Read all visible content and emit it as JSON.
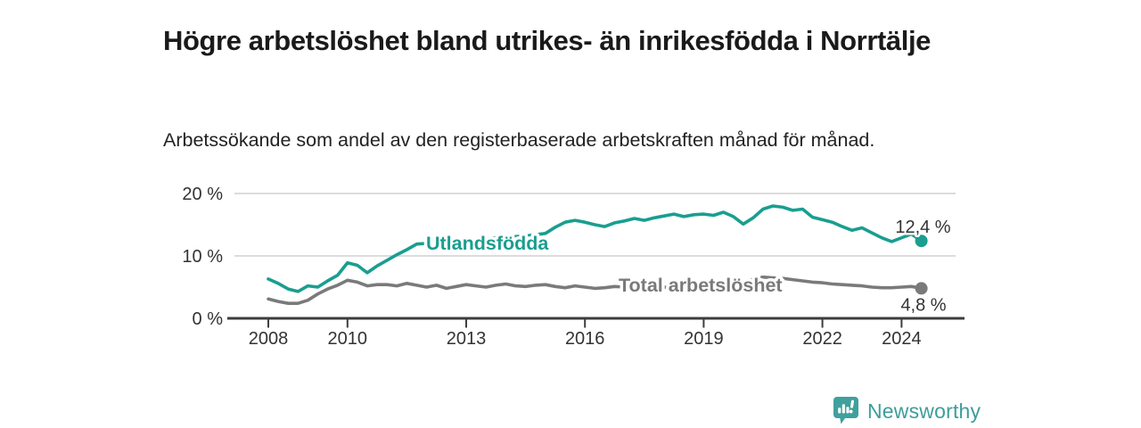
{
  "header": {
    "title": "Högre arbetslöshet bland utrikes- än inrikesfödda i Norrtälje",
    "subtitle": "Arbetssökande som andel av den registerbaserade arbetskraften månad för månad."
  },
  "chart_data": {
    "type": "line",
    "title": "Högre arbetslöshet bland utrikes- än inrikesfödda i Norrtälje",
    "subtitle": "Arbetssökande som andel av den registerbaserade arbetskraften månad för månad.",
    "unit": "%",
    "grid": "horizontal",
    "xlim": [
      2007.1,
      2025.6
    ],
    "ylim": [
      0,
      21.5
    ],
    "x": [
      2008.0,
      2008.25,
      2008.5,
      2008.75,
      2009.0,
      2009.25,
      2009.5,
      2009.75,
      2010.0,
      2010.25,
      2010.5,
      2010.75,
      2011.0,
      2011.25,
      2011.5,
      2011.75,
      2012.0,
      2012.25,
      2012.5,
      2012.75,
      2013.0,
      2013.25,
      2013.5,
      2013.75,
      2014.0,
      2014.25,
      2014.5,
      2014.75,
      2015.0,
      2015.25,
      2015.5,
      2015.75,
      2016.0,
      2016.25,
      2016.5,
      2016.75,
      2017.0,
      2017.25,
      2017.5,
      2017.75,
      2018.0,
      2018.25,
      2018.5,
      2018.75,
      2019.0,
      2019.25,
      2019.5,
      2019.75,
      2020.0,
      2020.25,
      2020.5,
      2020.75,
      2021.0,
      2021.25,
      2021.5,
      2021.75,
      2022.0,
      2022.25,
      2022.5,
      2022.75,
      2023.0,
      2023.25,
      2023.5,
      2023.75,
      2024.0,
      2024.25,
      2024.5
    ],
    "series": [
      {
        "name": "Utlandsfödda",
        "color": "#1A9E90",
        "end_label": "12,4 %",
        "end_value": 12.4,
        "values": [
          6.3,
          5.6,
          4.7,
          4.3,
          5.2,
          5.0,
          6.0,
          6.9,
          8.9,
          8.5,
          7.3,
          8.4,
          9.3,
          10.2,
          11.0,
          11.9,
          12.0,
          12.1,
          12.3,
          12.4,
          12.5,
          12.6,
          12.8,
          12.9,
          13.0,
          13.1,
          13.2,
          13.4,
          13.6,
          14.6,
          15.4,
          15.7,
          15.4,
          15.0,
          14.7,
          15.3,
          15.6,
          16.0,
          15.7,
          16.1,
          16.4,
          16.7,
          16.3,
          16.6,
          16.7,
          16.5,
          17.0,
          16.3,
          15.1,
          16.1,
          17.5,
          18.0,
          17.8,
          17.3,
          17.5,
          16.2,
          15.8,
          15.4,
          14.7,
          14.1,
          14.5,
          13.7,
          12.9,
          12.3,
          12.9,
          13.5,
          12.4
        ]
      },
      {
        "name": "Total arbetslöshet",
        "color": "#7A7A7A",
        "end_label": "4,8 %",
        "end_value": 4.8,
        "values": [
          3.1,
          2.7,
          2.4,
          2.4,
          2.9,
          3.9,
          4.7,
          5.3,
          6.1,
          5.8,
          5.2,
          5.4,
          5.4,
          5.2,
          5.6,
          5.3,
          5.0,
          5.3,
          4.8,
          5.1,
          5.4,
          5.2,
          5.0,
          5.3,
          5.5,
          5.2,
          5.1,
          5.3,
          5.4,
          5.1,
          4.9,
          5.2,
          5.0,
          4.8,
          4.9,
          5.1,
          5.0,
          4.9,
          5.2,
          5.1,
          5.0,
          4.9,
          5.1,
          5.0,
          5.2,
          5.3,
          5.5,
          5.4,
          5.6,
          6.3,
          6.6,
          6.5,
          6.4,
          6.2,
          6.0,
          5.8,
          5.7,
          5.5,
          5.4,
          5.3,
          5.2,
          5.0,
          4.9,
          4.9,
          5.0,
          5.1,
          4.8
        ]
      }
    ],
    "y_ticks": [
      {
        "value": 0,
        "label": "0 %"
      },
      {
        "value": 10,
        "label": "10 %"
      },
      {
        "value": 20,
        "label": "20 %"
      }
    ],
    "x_ticks": [
      {
        "value": 2008,
        "label": "2008"
      },
      {
        "value": 2010,
        "label": "2010"
      },
      {
        "value": 2013,
        "label": "2013"
      },
      {
        "value": 2016,
        "label": "2016"
      },
      {
        "value": 2019,
        "label": "2019"
      },
      {
        "value": 2022,
        "label": "2022"
      },
      {
        "value": 2024,
        "label": "2024"
      }
    ],
    "colors": {
      "axis": "#3d3d3d",
      "grid": "#dcdcdc",
      "tick_label": "#333333",
      "value_label": "#333333"
    }
  },
  "footer": {
    "brand": "Newsworthy",
    "brand_color": "#3E9D99",
    "logo_color": "#3FA09D"
  }
}
